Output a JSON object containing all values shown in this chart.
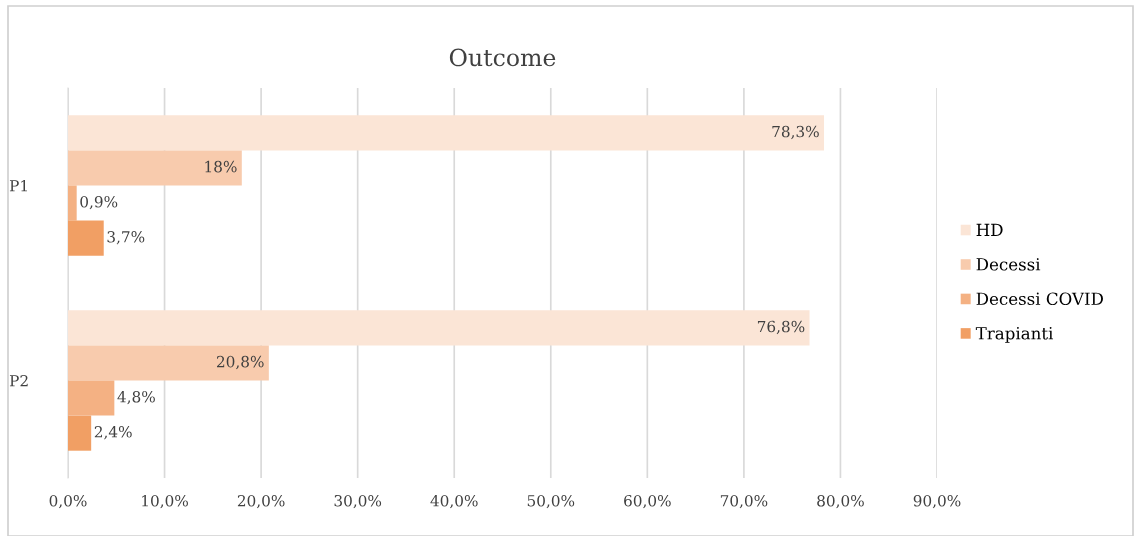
{
  "chart_data": {
    "type": "bar",
    "orientation": "horizontal",
    "title": "Outcome",
    "categories": [
      "P1",
      "P2"
    ],
    "series": [
      {
        "name": "HD",
        "color": "#fbe5d6",
        "values": [
          78.3,
          76.8
        ],
        "value_labels": [
          "78,3%",
          "76,8%"
        ]
      },
      {
        "name": "Decessi",
        "color": "#f8cbad",
        "values": [
          18,
          20.8
        ],
        "value_labels": [
          "18%",
          "20,8%"
        ]
      },
      {
        "name": "Decessi COVID",
        "color": "#f4b183",
        "values": [
          0.9,
          4.8
        ],
        "value_labels": [
          "0,9%",
          "4,8%"
        ]
      },
      {
        "name": "Trapianti",
        "color": "#f19f64",
        "values": [
          3.7,
          2.4
        ],
        "value_labels": [
          "3,7%",
          "2,4%"
        ]
      }
    ],
    "xlim": [
      0,
      90
    ],
    "xticks": [
      {
        "value": 0,
        "label": "0,0%"
      },
      {
        "value": 10,
        "label": "10,0%"
      },
      {
        "value": 20,
        "label": "20,0%"
      },
      {
        "value": 30,
        "label": "30,0%"
      },
      {
        "value": 40,
        "label": "40,0%"
      },
      {
        "value": 50,
        "label": "50,0%"
      },
      {
        "value": 60,
        "label": "60,0%"
      },
      {
        "value": 70,
        "label": "70,0%"
      },
      {
        "value": 80,
        "label": "80,0%"
      },
      {
        "value": 90,
        "label": "90,0%"
      }
    ],
    "grid": "x",
    "legend": "right"
  }
}
